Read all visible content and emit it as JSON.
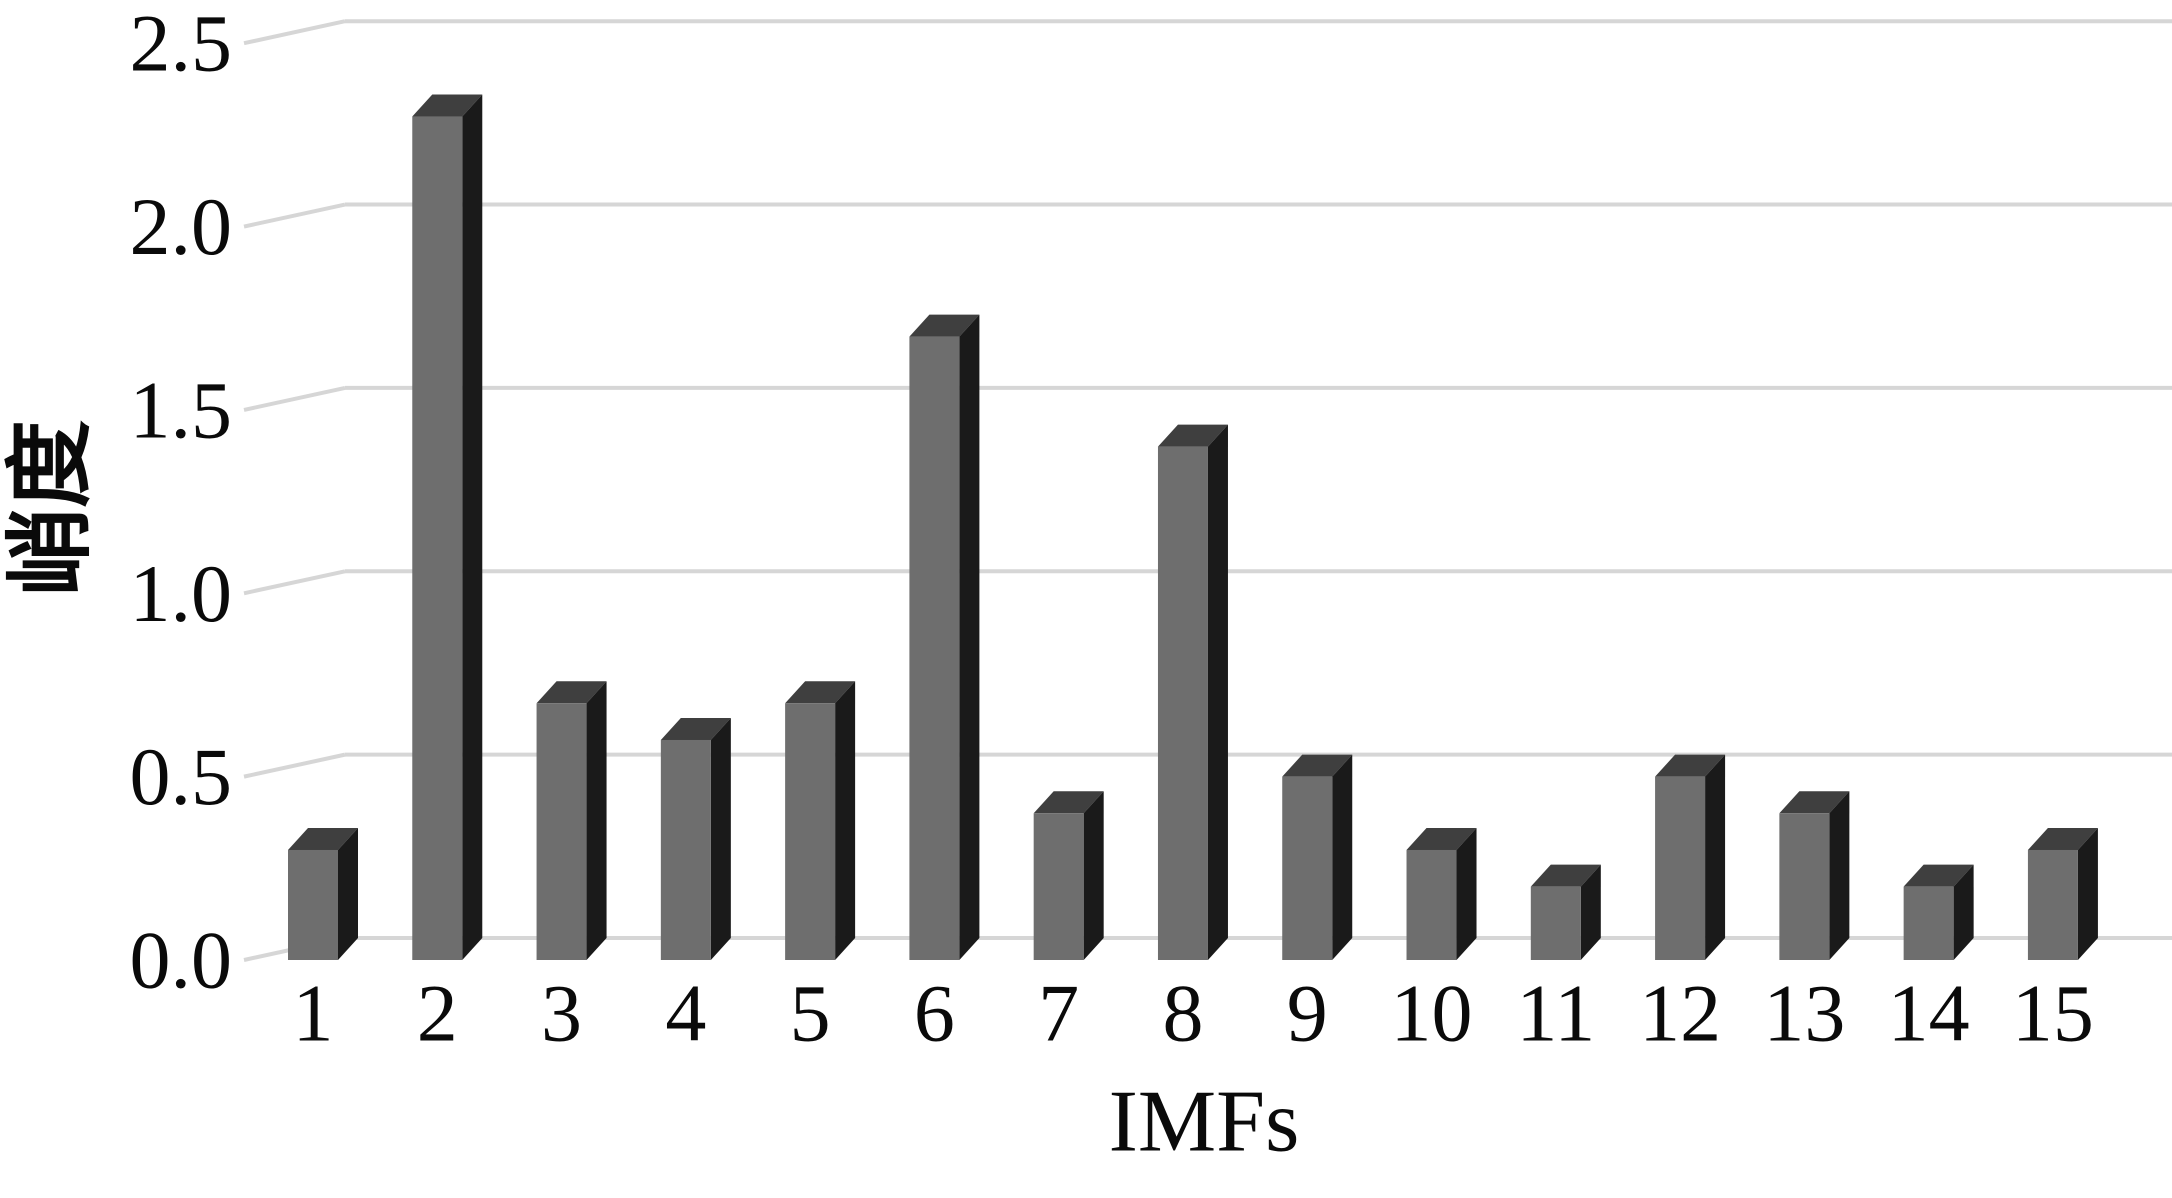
{
  "chart_data": {
    "type": "bar",
    "style": "3d-column",
    "title": "",
    "xlabel": "IMFs",
    "ylabel": "峭度",
    "categories": [
      "1",
      "2",
      "3",
      "4",
      "5",
      "6",
      "7",
      "8",
      "9",
      "10",
      "11",
      "12",
      "13",
      "14",
      "15"
    ],
    "series": [
      {
        "name": "峭度",
        "values": [
          0.3,
          2.3,
          0.7,
          0.6,
          0.7,
          1.7,
          0.4,
          1.4,
          0.5,
          0.3,
          0.2,
          0.5,
          0.4,
          0.2,
          0.3
        ]
      }
    ],
    "ytick_labels": [
      "0.0",
      "0.5",
      "1.0",
      "1.5",
      "2.0",
      "2.5"
    ],
    "ylim": [
      0,
      2.5
    ],
    "grid": true,
    "legend_position": "none",
    "colors": {
      "bar_front": "#6e6e6e",
      "bar_side": "#1a1a1a",
      "bar_top": "#3f3f3f",
      "gridline": "#d6d6d6",
      "text": "#0a0a0a",
      "background": "#ffffff"
    }
  }
}
